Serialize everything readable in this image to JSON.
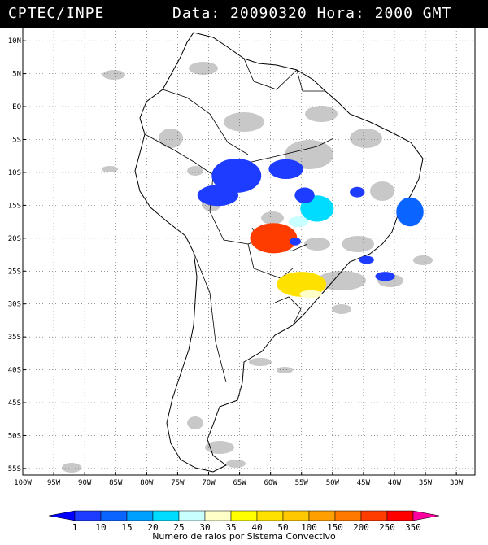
{
  "header": {
    "agency": "CPTEC/INPE",
    "data_label": "Data:",
    "date": "20090320",
    "hora_label": "Hora:",
    "hour": "2000 GMT"
  },
  "axes": {
    "lat_labels": [
      "10N",
      "5N",
      "EQ",
      "5S",
      "10S",
      "15S",
      "20S",
      "25S",
      "30S",
      "35S",
      "40S",
      "45S",
      "50S",
      "55S"
    ],
    "lat_values": [
      10,
      5,
      0,
      -5,
      -10,
      -15,
      -20,
      -25,
      -30,
      -35,
      -40,
      -45,
      -50,
      -55
    ],
    "lon_labels": [
      "100W",
      "95W",
      "90W",
      "85W",
      "80W",
      "75W",
      "70W",
      "65W",
      "60W",
      "55W",
      "50W",
      "45W",
      "40W",
      "35W",
      "30W"
    ],
    "lon_values": [
      -100,
      -95,
      -90,
      -85,
      -80,
      -75,
      -70,
      -65,
      -60,
      -55,
      -50,
      -45,
      -40,
      -35,
      -30
    ],
    "lon_range": [
      -100,
      -27
    ],
    "lat_range": [
      -56,
      12
    ]
  },
  "legend": {
    "values": [
      "1",
      "10",
      "15",
      "20",
      "25",
      "30",
      "35",
      "40",
      "50",
      "100",
      "150",
      "200",
      "250",
      "350"
    ],
    "colors": [
      "#0000ff",
      "#1e3cff",
      "#0a64ff",
      "#00a0ff",
      "#00dcff",
      "#c8ffff",
      "#ffffc8",
      "#ffff00",
      "#ffe100",
      "#ffc800",
      "#ffa000",
      "#ff7800",
      "#ff3c00",
      "#ff0000",
      "#ff00a0"
    ],
    "caption": "Numero de raios por Sistema Convectivo"
  },
  "cells": [
    {
      "lon": -65.5,
      "lat": -10.5,
      "rx": 4,
      "ry": 2.6,
      "level": 1
    },
    {
      "lon": -68.5,
      "lat": -13.5,
      "rx": 3.3,
      "ry": 1.6,
      "level": 1
    },
    {
      "lon": -57.5,
      "lat": -9.5,
      "rx": 2.8,
      "ry": 1.5,
      "level": 1
    },
    {
      "lon": -52.5,
      "lat": -15.5,
      "rx": 2.7,
      "ry": 2,
      "level": 4
    },
    {
      "lon": -54.5,
      "lat": -13.5,
      "rx": 1.6,
      "ry": 1.2,
      "level": 1
    },
    {
      "lon": -46,
      "lat": -13,
      "rx": 1.2,
      "ry": 0.8,
      "level": 1
    },
    {
      "lon": -37.5,
      "lat": -16,
      "rx": 2.2,
      "ry": 2.2,
      "level": 2
    },
    {
      "lon": -59.5,
      "lat": -20,
      "rx": 3.8,
      "ry": 2.3,
      "level": 12
    },
    {
      "lon": -55,
      "lat": -27,
      "rx": 4,
      "ry": 1.9,
      "level": 8
    },
    {
      "lon": -53.5,
      "lat": -28.5,
      "rx": 1.8,
      "ry": 0.6,
      "level": 6
    },
    {
      "lon": -41.5,
      "lat": -25.8,
      "rx": 1.6,
      "ry": 0.7,
      "level": 1
    },
    {
      "lon": -44.5,
      "lat": -23.3,
      "rx": 1.2,
      "ry": 0.6,
      "level": 1
    },
    {
      "lon": -56,
      "lat": -20.5,
      "rx": 0.9,
      "ry": 0.6,
      "level": 1
    },
    {
      "lon": -55.5,
      "lat": -17.5,
      "rx": 1.6,
      "ry": 0.8,
      "level": 5
    }
  ]
}
